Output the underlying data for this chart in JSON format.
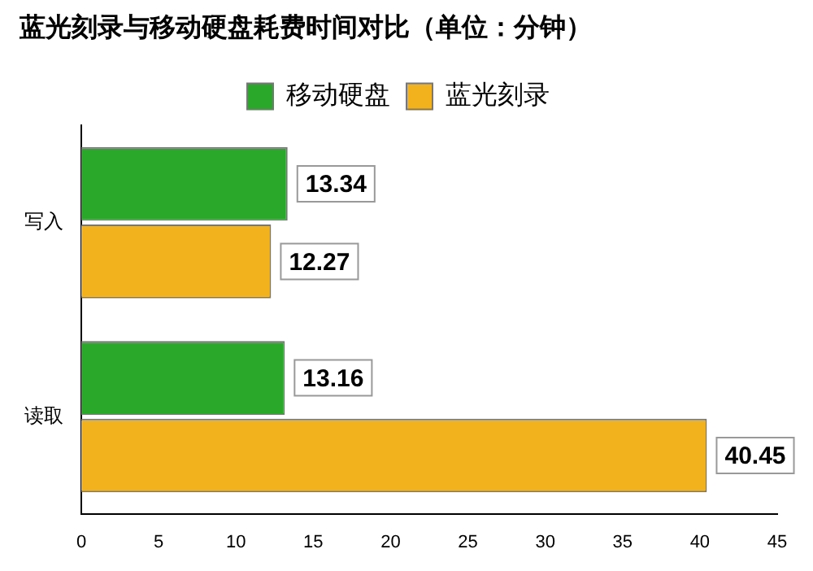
{
  "chart_data": {
    "type": "bar",
    "orientation": "horizontal",
    "title": "蓝光刻录与移动硬盘耗费时间对比（单位：分钟）",
    "categories": [
      "写入",
      "读取"
    ],
    "series": [
      {
        "name": "移动硬盘",
        "color": "#2aa82a",
        "values": [
          13.34,
          13.16
        ]
      },
      {
        "name": "蓝光刻录",
        "color": "#f2b21e",
        "values": [
          12.27,
          40.45
        ]
      }
    ],
    "xlim": [
      0,
      45
    ],
    "xticks": [
      0,
      5,
      10,
      15,
      20,
      25,
      30,
      35,
      40,
      45
    ],
    "grid": false,
    "legend": "top",
    "data_labels": true
  }
}
